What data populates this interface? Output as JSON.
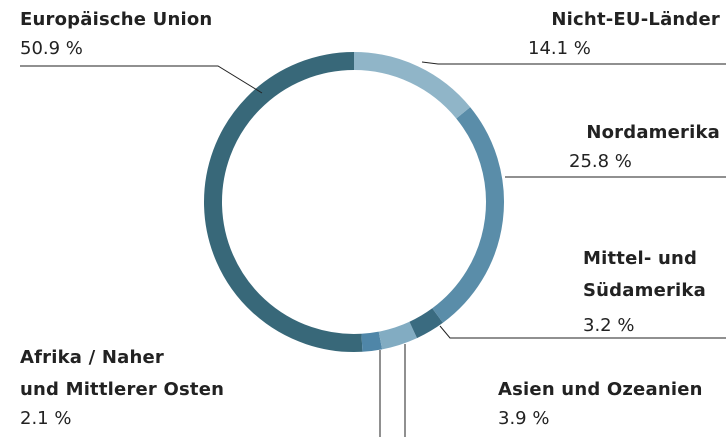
{
  "chart_data": {
    "type": "donut",
    "categories": [
      "Nicht-EU-Länder",
      "Nordamerika",
      "Mittel- und\nSüdamerika",
      "Asien und Ozeanien",
      "Afrika / Naher\nund Mittlerer Osten",
      "Europäische Union"
    ],
    "values": [
      14.1,
      25.8,
      3.2,
      3.9,
      2.1,
      50.9
    ],
    "value_labels": [
      "14.1 %",
      "25.8 %",
      "3.2 %",
      "3.9 %",
      "2.1 %",
      "50.9 %"
    ],
    "colors": [
      "#90b5c8",
      "#5a8da9",
      "#3a6b80",
      "#82acc2",
      "#4f86a8",
      "#386879"
    ]
  }
}
